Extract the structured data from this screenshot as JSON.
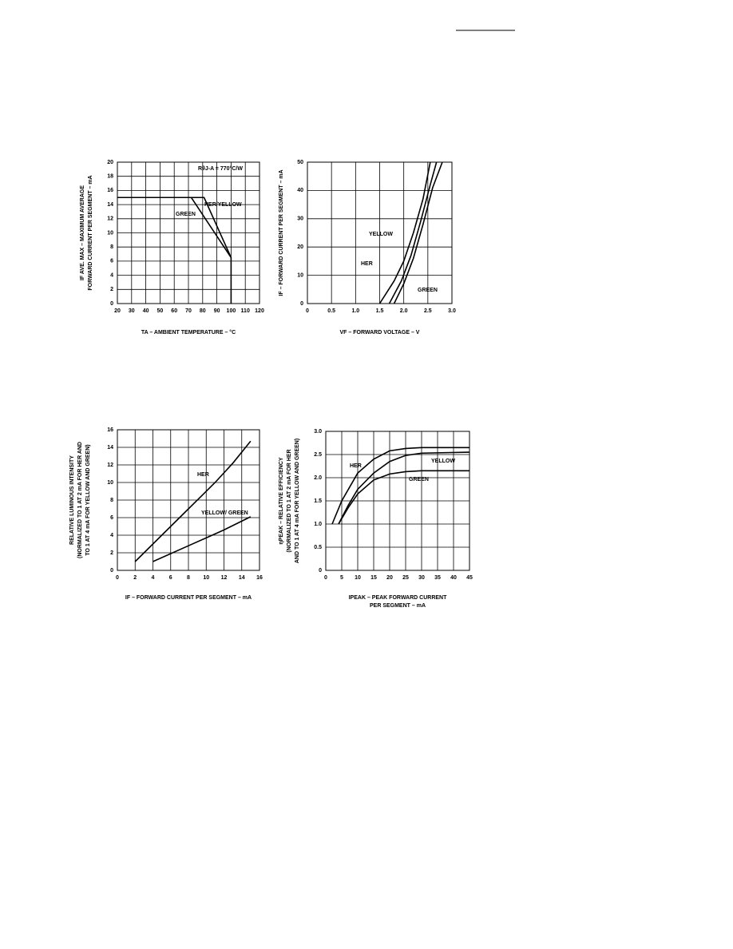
{
  "chart_data": [
    {
      "type": "line",
      "annotation": "RθJ-A = 770°C/W",
      "xlabel": [
        "TA – AMBIENT TEMPERATURE – °C"
      ],
      "ylabel": [
        "IF AVE. MAX – MAXIMUM AVERAGE",
        "FORWARD CURRENT PER SEGMENT – mA"
      ],
      "xlim": [
        20,
        120
      ],
      "xticks": [
        20,
        30,
        40,
        50,
        60,
        70,
        80,
        90,
        100,
        110,
        120
      ],
      "ylim": [
        0,
        20
      ],
      "yticks": [
        0,
        2,
        4,
        6,
        8,
        10,
        12,
        14,
        16,
        18,
        20
      ],
      "grid": true,
      "series": [
        {
          "name": "HER/YELLOW",
          "color": "#000000",
          "x": [
            20,
            81,
            100,
            100
          ],
          "values": [
            15,
            15,
            6.5,
            0
          ]
        },
        {
          "name": "GREEN",
          "color": "#000000",
          "x": [
            20,
            72,
            100
          ],
          "values": [
            15,
            15,
            6.5
          ]
        }
      ]
    },
    {
      "type": "line",
      "xlabel": [
        "VF – FORWARD VOLTAGE – V"
      ],
      "ylabel": [
        "IF – FORWARD CURRENT PER SEGMENT – mA"
      ],
      "xlim": [
        0,
        3
      ],
      "xticks": [
        0,
        0.5,
        {
          "value": 1,
          "label": "1.0"
        },
        1.5,
        {
          "value": 2,
          "label": "2.0"
        },
        2.5,
        {
          "value": 3,
          "label": "3.0"
        }
      ],
      "ylim": [
        0,
        50
      ],
      "yticks": [
        0,
        10,
        20,
        30,
        40,
        50
      ],
      "grid": true,
      "series": [
        {
          "name": "HER",
          "color": "#000000",
          "x": [
            1.5,
            1.8,
            2.0,
            2.2,
            2.4,
            2.55
          ],
          "values": [
            0,
            8,
            15,
            25,
            37,
            50
          ]
        },
        {
          "name": "YELLOW",
          "color": "#000000",
          "x": [
            1.7,
            1.95,
            2.15,
            2.35,
            2.55,
            2.68
          ],
          "values": [
            0,
            8,
            17,
            29,
            42,
            50
          ]
        },
        {
          "name": "GREEN",
          "color": "#000000",
          "x": [
            1.8,
            2.0,
            2.2,
            2.4,
            2.6,
            2.8
          ],
          "values": [
            0,
            7,
            16,
            28,
            41,
            50
          ]
        }
      ]
    },
    {
      "type": "line",
      "xlabel": [
        "IF – FORWARD CURRENT PER SEGMENT – mA"
      ],
      "ylabel": [
        "RELATIVE LUMINOUS INTENSITY",
        "(NORMALIZED TO 1 AT 2 mA FOR HER AND",
        "TO 1 AT 4 mA FOR YELLOW AND GREEN)"
      ],
      "xlim": [
        0,
        16
      ],
      "xticks": [
        0,
        2,
        4,
        6,
        8,
        10,
        12,
        14,
        16
      ],
      "ylim": [
        0,
        16
      ],
      "yticks": [
        0,
        2,
        4,
        6,
        8,
        10,
        12,
        14,
        16
      ],
      "grid": true,
      "series": [
        {
          "name": "HER",
          "color": "#000000",
          "x": [
            2,
            5,
            8,
            11,
            13,
            15
          ],
          "values": [
            1,
            4,
            7,
            10,
            12.2,
            14.7
          ]
        },
        {
          "name": "YELLOW/ GREEN",
          "color": "#000000",
          "x": [
            4,
            8,
            12,
            15
          ],
          "values": [
            1,
            2.8,
            4.6,
            6.1
          ]
        }
      ]
    },
    {
      "type": "line",
      "xlabel": [
        "IPEAK – PEAK FORWARD CURRENT",
        "PER SEGMENT – mA"
      ],
      "ylabel": [
        "ηPEAK – RELATIVE EFFICIENCY",
        "(NORMALIZED TO 1 AT 2 mA FOR HER",
        "AND TO 1 AT 4 mA FOR YELLOW AND GREEN)"
      ],
      "xlim": [
        0,
        45
      ],
      "xticks": [
        0,
        5,
        10,
        15,
        20,
        25,
        30,
        35,
        40,
        45
      ],
      "ylim": [
        0,
        3
      ],
      "yticks": [
        0,
        0.5,
        {
          "value": 1,
          "label": "1.0"
        },
        1.5,
        {
          "value": 2,
          "label": "2.0"
        },
        2.5,
        {
          "value": 3,
          "label": "3.0"
        }
      ],
      "grid": true,
      "series": [
        {
          "name": "HER",
          "color": "#000000",
          "x": [
            2,
            5,
            10,
            15,
            20,
            25,
            30,
            45
          ],
          "values": [
            1.0,
            1.5,
            2.1,
            2.4,
            2.58,
            2.63,
            2.65,
            2.65
          ]
        },
        {
          "name": "YELLOW",
          "color": "#000000",
          "x": [
            4,
            7,
            10,
            15,
            20,
            25,
            30,
            45
          ],
          "values": [
            1.0,
            1.4,
            1.75,
            2.1,
            2.35,
            2.48,
            2.53,
            2.55
          ]
        },
        {
          "name": "GREEN",
          "color": "#000000",
          "x": [
            4,
            7,
            10,
            15,
            20,
            25,
            30,
            45
          ],
          "values": [
            1.0,
            1.35,
            1.65,
            1.95,
            2.08,
            2.13,
            2.15,
            2.15
          ]
        }
      ]
    }
  ]
}
